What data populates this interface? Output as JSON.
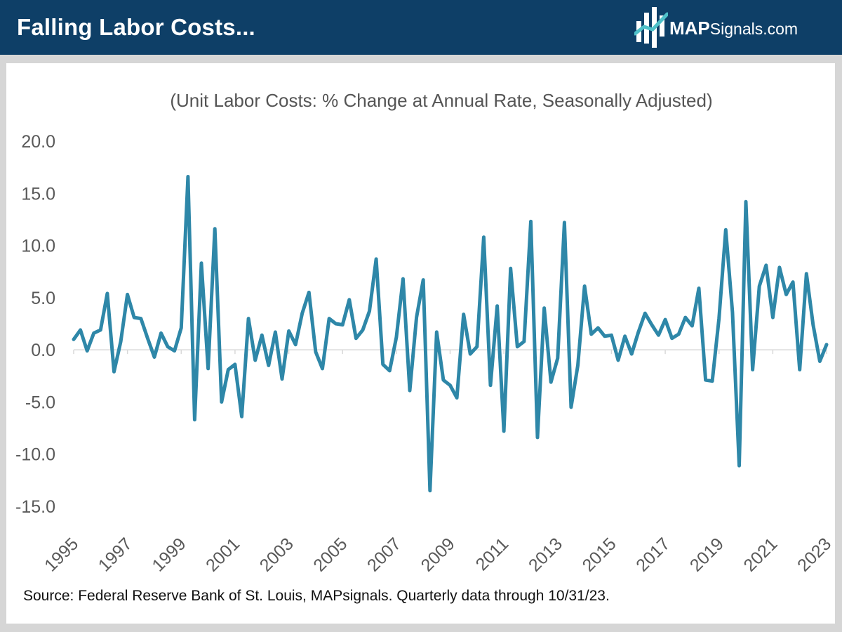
{
  "header": {
    "title": "Falling Labor Costs...",
    "logo_brand": "MAP",
    "logo_suffix": "Signals.com"
  },
  "colors": {
    "header_bg": "#0e3f67",
    "line": "#2e87a8",
    "logo_accent": "#4fc1c9"
  },
  "source_note": "Source: Federal Reserve Bank of St. Louis, MAPsignals. Quarterly data through 10/31/23.",
  "chart_data": {
    "type": "line",
    "title": "(Unit Labor Costs: % Change at Annual Rate, Seasonally Adjusted)",
    "xlabel": "",
    "ylabel": "",
    "ylim": [
      -15,
      20
    ],
    "yticks": [
      "20.0",
      "15.0",
      "10.0",
      "5.0",
      "0.0",
      "-5.0",
      "-10.0",
      "-15.0"
    ],
    "ytick_values": [
      20,
      15,
      10,
      5,
      0,
      -5,
      -10,
      -15
    ],
    "xticks": [
      "1995",
      "1997",
      "1999",
      "2001",
      "2003",
      "2005",
      "2007",
      "2009",
      "2011",
      "2013",
      "2015",
      "2017",
      "2019",
      "2021",
      "2023"
    ],
    "xlim": [
      "1995 Q1",
      "2023 Q3"
    ],
    "grid": false,
    "frequency": "quarterly",
    "series": [
      {
        "values": [
          1.0,
          1.9,
          -0.1,
          1.6,
          1.9,
          5.4,
          -2.1,
          0.8,
          5.3,
          3.1,
          3.0,
          1.1,
          -0.7,
          1.6,
          0.3,
          -0.1,
          2.1,
          16.6,
          -6.7,
          8.3,
          -1.8,
          11.6,
          -5.0,
          -1.9,
          -1.4,
          -6.4,
          3.0,
          -1.0,
          1.4,
          -1.5,
          1.7,
          -2.8,
          1.8,
          0.5,
          3.5,
          5.5,
          -0.2,
          -1.8,
          3.0,
          2.5,
          2.4,
          4.8,
          1.1,
          1.9,
          3.7,
          8.7,
          -1.4,
          -2.0,
          1.2,
          6.8,
          -3.9,
          3.1,
          6.7,
          -13.5,
          1.7,
          -2.9,
          -3.4,
          -4.6,
          3.4,
          -0.4,
          0.3,
          10.8,
          -3.4,
          4.2,
          -7.8,
          7.8,
          0.3,
          0.8,
          12.3,
          -8.4,
          4.0,
          -3.1,
          -0.8,
          12.2,
          -5.5,
          -1.5,
          6.1,
          1.5,
          2.1,
          1.3,
          1.4,
          -1.0,
          1.3,
          -0.4,
          1.7,
          3.5,
          2.4,
          1.4,
          2.9,
          1.1,
          1.5,
          3.1,
          2.3,
          5.9,
          -2.9,
          -3.0,
          3.0,
          11.5,
          3.6,
          -11.1,
          14.2,
          -1.9,
          6.1,
          8.1,
          3.1,
          7.9,
          5.3,
          6.5,
          -1.9,
          7.3,
          2.4,
          -1.1,
          0.5
        ]
      }
    ]
  }
}
